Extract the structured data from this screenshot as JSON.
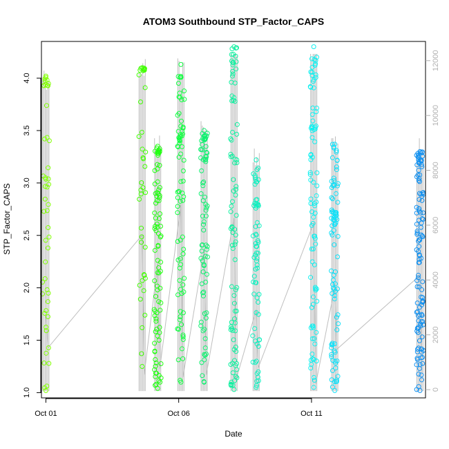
{
  "chart_data": {
    "type": "scatter",
    "title": "ATOM3 Southbound STP_Factor_CAPS",
    "xlabel": "Date",
    "ylabel": "STP_Factor_CAPS",
    "x_ticks": [
      {
        "date": "2024-10-01",
        "label": "Oct 01"
      },
      {
        "date": "2024-10-06",
        "label": "Oct 06"
      },
      {
        "date": "2024-10-11",
        "label": "Oct 11"
      }
    ],
    "xlim": [
      "2024-09-30T20:00",
      "2024-10-15T07:00"
    ],
    "ylim": [
      0.95,
      4.35
    ],
    "y_ticks": [
      1.0,
      1.5,
      2.0,
      2.5,
      3.0,
      3.5,
      4.0
    ],
    "y_tick_labels": [
      "1.0",
      "1.5",
      "2.0",
      "2.5",
      "3.0",
      "3.5",
      "4.0"
    ],
    "y2lim": [
      -300,
      12700
    ],
    "y2_ticks": [
      0,
      2000,
      4000,
      6000,
      8000,
      10000,
      12000
    ],
    "y2_tick_labels": [
      "0",
      "2000",
      "4000",
      "6000",
      "8000",
      "10000",
      "12000"
    ],
    "secondary_series_color": "#bebebe",
    "grid": false,
    "clusters": [
      {
        "date": "2024-10-01T00:00",
        "color": "#80ff00",
        "ymin": 1.02,
        "ymax": 4.02,
        "high_band": [
          3.92,
          4.0
        ],
        "n": 40
      },
      {
        "date": "2024-10-04T15:00",
        "color": "#40ff00",
        "ymin": 1.25,
        "ymax": 4.1,
        "high_band": [
          4.07,
          4.1
        ],
        "n": 30
      },
      {
        "date": "2024-10-05T05:00",
        "color": "#20ff10",
        "ymin": 1.04,
        "ymax": 3.35,
        "high_band": [
          3.25,
          3.35
        ],
        "n": 80
      },
      {
        "date": "2024-10-06T02:00",
        "color": "#10ff40",
        "ymin": 1.1,
        "ymax": 4.13,
        "high_band": [
          3.4,
          3.5
        ],
        "n": 70
      },
      {
        "date": "2024-10-06T23:00",
        "color": "#10f070",
        "ymin": 1.1,
        "ymax": 3.5,
        "high_band": [
          3.4,
          3.48
        ],
        "n": 70
      },
      {
        "date": "2024-10-08T02:00",
        "color": "#10f0a0",
        "ymin": 1.03,
        "ymax": 4.3,
        "high_band": [
          3.95,
          4.3
        ],
        "n": 80
      },
      {
        "date": "2024-10-08T22:00",
        "color": "#10f0c0",
        "ymin": 1.05,
        "ymax": 3.22,
        "high_band": [
          2.78,
          2.82
        ],
        "n": 60
      },
      {
        "date": "2024-10-11T02:00",
        "color": "#10f0f0",
        "ymin": 1.05,
        "ymax": 4.3,
        "high_band": [
          3.5,
          3.55
        ],
        "n": 80
      },
      {
        "date": "2024-10-11T21:00",
        "color": "#10e0f8",
        "ymin": 1.02,
        "ymax": 3.37,
        "high_band": [
          2.6,
          2.75
        ],
        "n": 80
      },
      {
        "date": "2024-10-15T02:00",
        "color": "#1090f0",
        "ymin": 1.02,
        "ymax": 3.3,
        "high_band": [
          3.2,
          3.3
        ],
        "n": 110
      }
    ]
  }
}
